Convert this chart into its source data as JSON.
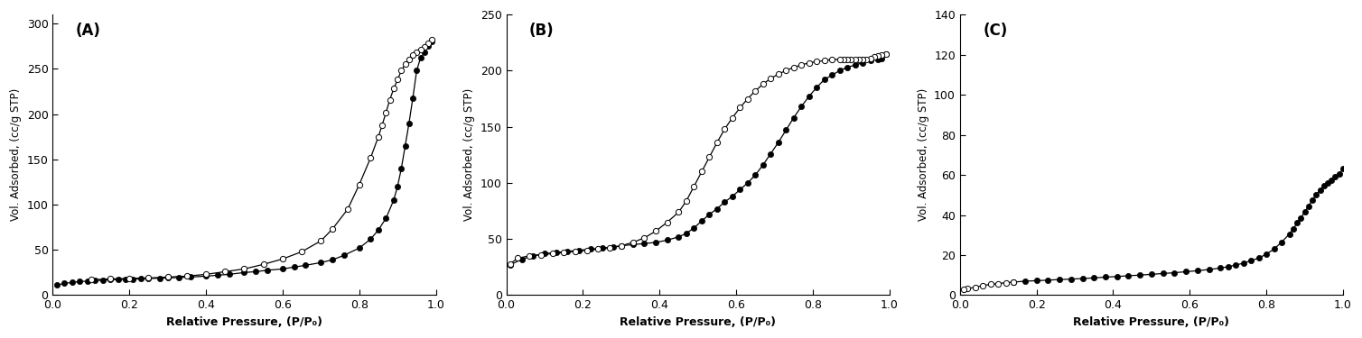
{
  "panels": [
    "A",
    "B",
    "C"
  ],
  "ylabel": "Vol. Adsorbed, (cc/g STP)",
  "xlabel_A": "Relative Pressure, (P/P₀)",
  "xlabel_B": "Relative Pressure, (P/P₀)",
  "xlabel_C": "Relative Pressure, (P/P₀)",
  "background_color": "#ffffff",
  "panel_A": {
    "label": "(A)",
    "ylim": [
      0,
      310
    ],
    "yticks": [
      0,
      50,
      100,
      150,
      200,
      250,
      300
    ],
    "adsorption_x": [
      0.01,
      0.03,
      0.05,
      0.07,
      0.09,
      0.11,
      0.13,
      0.15,
      0.17,
      0.19,
      0.21,
      0.23,
      0.25,
      0.28,
      0.3,
      0.33,
      0.36,
      0.4,
      0.43,
      0.46,
      0.5,
      0.53,
      0.56,
      0.6,
      0.63,
      0.66,
      0.7,
      0.73,
      0.76,
      0.8,
      0.83,
      0.85,
      0.87,
      0.89,
      0.9,
      0.91,
      0.92,
      0.93,
      0.94,
      0.95,
      0.96,
      0.97,
      0.98,
      0.99
    ],
    "adsorption_y": [
      11,
      13,
      14,
      15,
      15.5,
      16,
      16.5,
      17,
      17.2,
      17.5,
      17.8,
      18,
      18.3,
      18.8,
      19,
      19.5,
      20,
      21,
      22,
      23,
      25,
      26,
      27.5,
      29,
      31,
      33,
      36,
      39,
      44,
      52,
      62,
      72,
      85,
      105,
      120,
      140,
      165,
      190,
      218,
      248,
      262,
      268,
      275,
      280
    ],
    "desorption_x": [
      0.99,
      0.98,
      0.97,
      0.96,
      0.95,
      0.94,
      0.93,
      0.92,
      0.91,
      0.9,
      0.89,
      0.88,
      0.87,
      0.86,
      0.85,
      0.83,
      0.8,
      0.77,
      0.73,
      0.7,
      0.65,
      0.6,
      0.55,
      0.5,
      0.45,
      0.4,
      0.35,
      0.3,
      0.25,
      0.2,
      0.15,
      0.1
    ],
    "desorption_y": [
      282,
      278,
      274,
      271,
      268,
      265,
      260,
      255,
      248,
      238,
      228,
      216,
      202,
      188,
      175,
      152,
      122,
      95,
      73,
      60,
      48,
      40,
      34,
      29,
      26,
      23,
      21,
      20,
      19,
      18.5,
      18,
      17
    ]
  },
  "panel_B": {
    "label": "(B)",
    "ylim": [
      0,
      250
    ],
    "yticks": [
      0,
      50,
      100,
      150,
      200,
      250
    ],
    "adsorption_x": [
      0.01,
      0.04,
      0.07,
      0.1,
      0.13,
      0.16,
      0.19,
      0.22,
      0.25,
      0.28,
      0.3,
      0.33,
      0.36,
      0.39,
      0.42,
      0.45,
      0.47,
      0.49,
      0.51,
      0.53,
      0.55,
      0.57,
      0.59,
      0.61,
      0.63,
      0.65,
      0.67,
      0.69,
      0.71,
      0.73,
      0.75,
      0.77,
      0.79,
      0.81,
      0.83,
      0.85,
      0.87,
      0.89,
      0.91,
      0.93,
      0.95,
      0.97,
      0.98,
      0.99
    ],
    "adsorption_y": [
      27,
      32,
      35,
      37,
      38,
      39,
      40,
      41,
      42,
      43,
      44,
      45,
      46,
      47,
      49,
      52,
      55,
      60,
      66,
      72,
      77,
      83,
      88,
      94,
      100,
      107,
      116,
      126,
      136,
      147,
      158,
      168,
      177,
      185,
      192,
      196,
      200,
      203,
      205,
      207,
      209,
      210,
      211,
      215
    ],
    "desorption_x": [
      0.99,
      0.98,
      0.97,
      0.96,
      0.95,
      0.94,
      0.93,
      0.92,
      0.91,
      0.9,
      0.89,
      0.88,
      0.87,
      0.85,
      0.83,
      0.81,
      0.79,
      0.77,
      0.75,
      0.73,
      0.71,
      0.69,
      0.67,
      0.65,
      0.63,
      0.61,
      0.59,
      0.57,
      0.55,
      0.53,
      0.51,
      0.49,
      0.47,
      0.45,
      0.42,
      0.39,
      0.36,
      0.33,
      0.3,
      0.27,
      0.24,
      0.21,
      0.18,
      0.15,
      0.12,
      0.09,
      0.06,
      0.03,
      0.01
    ],
    "desorption_y": [
      215,
      214,
      213,
      212,
      211,
      210,
      210,
      210,
      210,
      210,
      210,
      210,
      210,
      210,
      209,
      208,
      207,
      205,
      203,
      200,
      197,
      193,
      188,
      182,
      175,
      167,
      158,
      148,
      136,
      123,
      110,
      97,
      84,
      74,
      65,
      57,
      51,
      47,
      44,
      42,
      41,
      40,
      39,
      38,
      37,
      36,
      35,
      33,
      28
    ]
  },
  "panel_C": {
    "label": "(C)",
    "ylim": [
      0,
      140
    ],
    "yticks": [
      0,
      20,
      40,
      60,
      80,
      100,
      120,
      140
    ],
    "adsorption_x": [
      0.14,
      0.17,
      0.2,
      0.23,
      0.26,
      0.29,
      0.32,
      0.35,
      0.38,
      0.41,
      0.44,
      0.47,
      0.5,
      0.53,
      0.56,
      0.59,
      0.62,
      0.65,
      0.68,
      0.7,
      0.72,
      0.74,
      0.76,
      0.78,
      0.8,
      0.82,
      0.84,
      0.86,
      0.87,
      0.88,
      0.89,
      0.9,
      0.91,
      0.92,
      0.93,
      0.94,
      0.95,
      0.96,
      0.97,
      0.98,
      0.99,
      1.0
    ],
    "adsorption_y": [
      6.5,
      7.0,
      7.2,
      7.5,
      7.8,
      8.0,
      8.3,
      8.6,
      9.0,
      9.3,
      9.7,
      10.0,
      10.4,
      10.8,
      11.2,
      11.7,
      12.2,
      12.8,
      13.5,
      14.2,
      15.0,
      16.0,
      17.2,
      18.5,
      20.5,
      23.0,
      26.5,
      30.5,
      33.0,
      36.0,
      38.5,
      41.5,
      44.5,
      47.5,
      50.0,
      52.5,
      54.5,
      56.0,
      57.5,
      59.0,
      60.5,
      63.0
    ],
    "desorption_x": [
      0.14,
      0.12,
      0.1,
      0.08,
      0.06,
      0.04,
      0.02,
      0.01
    ],
    "desorption_y": [
      6.5,
      6.2,
      5.8,
      5.4,
      4.8,
      4.0,
      3.2,
      2.8
    ]
  }
}
